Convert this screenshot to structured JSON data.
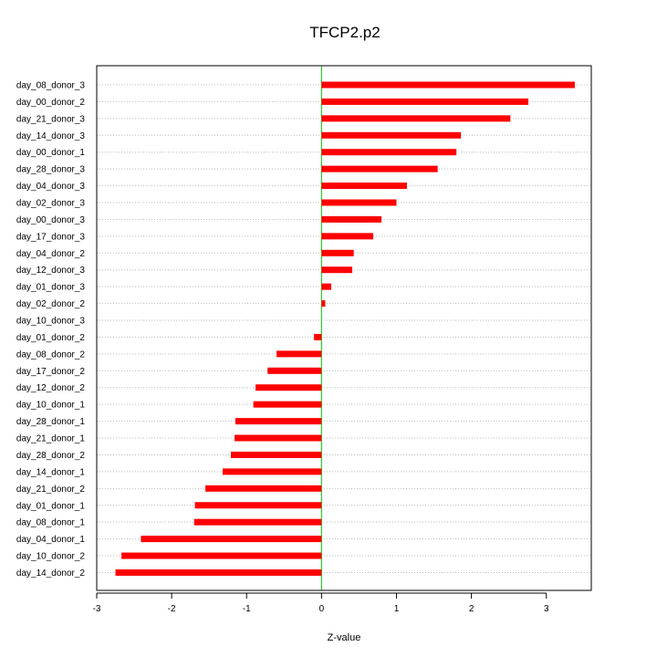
{
  "chart_data": {
    "type": "bar",
    "orientation": "horizontal",
    "title": "TFCP2.p2",
    "xlabel": "Z-value",
    "ylabel": "",
    "xlim": [
      -3,
      3.6
    ],
    "xticks": [
      -3,
      -2,
      -1,
      0,
      1,
      2,
      3
    ],
    "grid": "horizontal-dotted",
    "legend": "none",
    "bar_color": "#ff0000",
    "zero_line_color": "#00cc00",
    "categories": [
      "day_08_donor_3",
      "day_00_donor_2",
      "day_21_donor_3",
      "day_14_donor_3",
      "day_00_donor_1",
      "day_28_donor_3",
      "day_04_donor_3",
      "day_02_donor_3",
      "day_00_donor_3",
      "day_17_donor_3",
      "day_04_donor_2",
      "day_12_donor_3",
      "day_01_donor_3",
      "day_02_donor_2",
      "day_10_donor_3",
      "day_01_donor_2",
      "day_08_donor_2",
      "day_17_donor_2",
      "day_12_donor_2",
      "day_10_donor_1",
      "day_28_donor_1",
      "day_21_donor_1",
      "day_28_donor_2",
      "day_14_donor_1",
      "day_21_donor_2",
      "day_01_donor_1",
      "day_08_donor_1",
      "day_04_donor_1",
      "day_10_donor_2",
      "day_14_donor_2"
    ],
    "values": [
      3.38,
      2.76,
      2.52,
      1.86,
      1.8,
      1.55,
      1.14,
      1.0,
      0.8,
      0.69,
      0.43,
      0.41,
      0.13,
      0.05,
      0.0,
      -0.1,
      -0.6,
      -0.72,
      -0.88,
      -0.91,
      -1.15,
      -1.16,
      -1.21,
      -1.32,
      -1.55,
      -1.69,
      -1.7,
      -2.41,
      -2.67,
      -2.75
    ]
  }
}
